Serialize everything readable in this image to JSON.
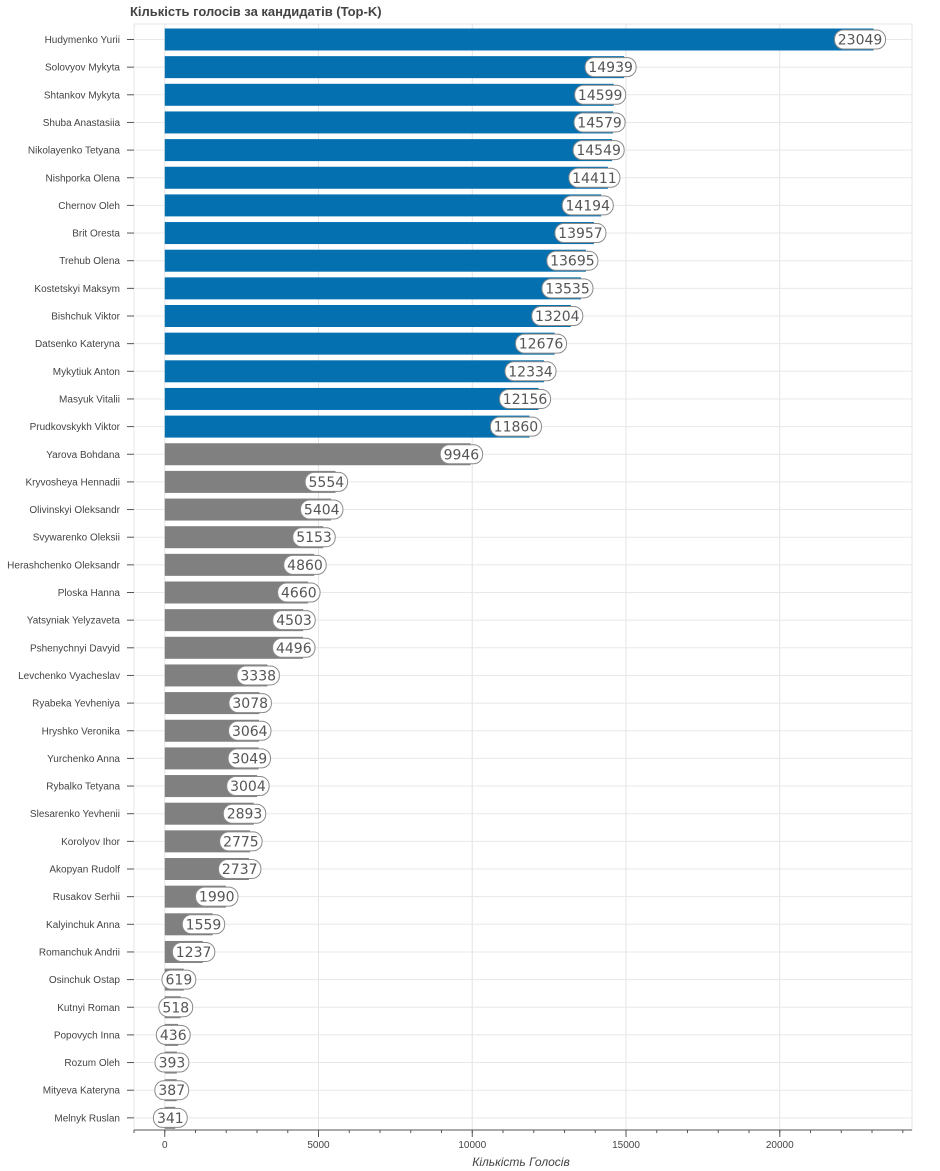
{
  "chart_data": {
    "type": "bar",
    "orientation": "horizontal",
    "title": "Кількість голосів за кандидатів (Top-K)",
    "xlabel": "Кількість Голосів",
    "ylabel": "",
    "xlim": [
      -1000,
      24300
    ],
    "x_ticks": [
      0,
      5000,
      10000,
      15000,
      20000
    ],
    "grid": true,
    "colors": {
      "top": "#0570b0",
      "rest": "#808080"
    },
    "categories": [
      "Hudymenko Yurii",
      "Solovyov Mykyta",
      "Shtankov Mykyta",
      "Shuba Anastasiia",
      "Nikolayenko Tetyana",
      "Nishporka Olena",
      "Chernov Oleh",
      "Brit Oresta",
      "Trehub Olena",
      "Kostetskyi Maksym",
      "Bishchuk Viktor",
      "Datsenko Kateryna",
      "Mykytiuk Anton",
      "Masyuk Vitalii",
      "Prudkovskykh Viktor",
      "Yarova Bohdana",
      "Kryvosheya Hennadii",
      "Olivinskyi Oleksandr",
      "Svywarenko Oleksii",
      "Herashchenko Oleksandr",
      "Ploska Hanna",
      "Yatsyniak Yelyzaveta",
      "Pshenychnyi Davyid",
      "Levchenko Vyacheslav",
      "Ryabeka Yevheniya",
      "Hryshko Veronika",
      "Yurchenko Anna",
      "Rybalko Tetyana",
      "Slesarenko Yevhenii",
      "Korolyov Ihor",
      "Akopyan Rudolf",
      "Rusakov Serhii",
      "Kalyinchuk Anna",
      "Romanchuk Andrii",
      "Osinchuk Ostap",
      "Kutnyi Roman",
      "Popovych Inna",
      "Rozum Oleh",
      "Mityeva Kateryna",
      "Melnyk Ruslan"
    ],
    "values": [
      23049,
      14939,
      14599,
      14579,
      14549,
      14411,
      14194,
      13957,
      13695,
      13535,
      13204,
      12676,
      12334,
      12156,
      11860,
      9946,
      5554,
      5404,
      5153,
      4860,
      4660,
      4503,
      4496,
      3338,
      3078,
      3064,
      3049,
      3004,
      2893,
      2775,
      2737,
      1990,
      1559,
      1237,
      619,
      518,
      436,
      393,
      387,
      341
    ],
    "highlighted_count": 15
  }
}
